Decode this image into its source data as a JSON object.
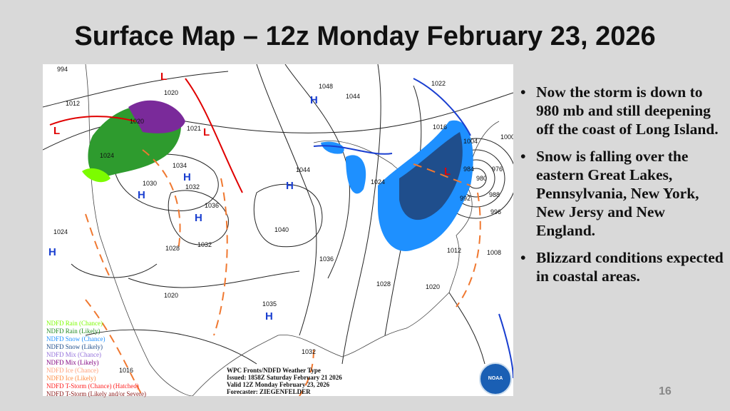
{
  "slide": {
    "title": "Surface Map – 12z Monday February 23, 2026",
    "page_number": "16",
    "bullets": [
      "Now the storm is down to 980 mb and still deepening off the coast of Long Island.",
      "Snow is falling over the eastern Great Lakes, Pennsylvania, New York, New Jersy and New England.",
      "Blizzard conditions expected in coastal areas."
    ]
  },
  "map": {
    "legend": [
      {
        "label": "NDFD Rain (Chance)",
        "color": "#7cfc00"
      },
      {
        "label": "NDFD Rain (Likely)",
        "color": "#228b22"
      },
      {
        "label": "NDFD Snow (Chance)",
        "color": "#1e90ff"
      },
      {
        "label": "NDFD Snow (Likely)",
        "color": "#1f4e8c"
      },
      {
        "label": "NDFD Mix (Chance)",
        "color": "#9370db"
      },
      {
        "label": "NDFD Mix (Likely)",
        "color": "#800080"
      },
      {
        "label": "NDFD Ice (Chance)",
        "color": "#ffa07a"
      },
      {
        "label": "NDFD Ice (Likely)",
        "color": "#ff8c42"
      },
      {
        "label": "NDFD T-Storm (Chance) (Hatched)",
        "color": "#ff2020"
      },
      {
        "label": "NDFD T-Storm (Likely and/or Severe)",
        "color": "#8b1a1a"
      }
    ],
    "caption": [
      "WPC Fronts/NDFD Weather Type",
      "Issued: 1858Z Saturday February 21 2026",
      "Valid 12Z Monday February 23, 2026",
      "Forecaster: ZIEGENFELDER"
    ],
    "logo_text": "NOAA",
    "isobar_labels": [
      "994",
      "1012",
      "1020",
      "1020",
      "1021",
      "1024",
      "1034",
      "1030",
      "1032",
      "1036",
      "1024",
      "1028",
      "1032",
      "1040",
      "1044",
      "1048",
      "1044",
      "1022",
      "1016",
      "1000",
      "1004",
      "984",
      "980",
      "976",
      "988",
      "992",
      "996",
      "1024",
      "1036",
      "1012",
      "1008",
      "1028",
      "1020",
      "1020",
      "1035",
      "1032",
      "1016"
    ],
    "pressure_centers": [
      "H",
      "H",
      "H",
      "H",
      "H",
      "H",
      "H",
      "L",
      "L",
      "L",
      "L"
    ],
    "high_color": "#1a3fd0",
    "low_color": "#e00000"
  }
}
